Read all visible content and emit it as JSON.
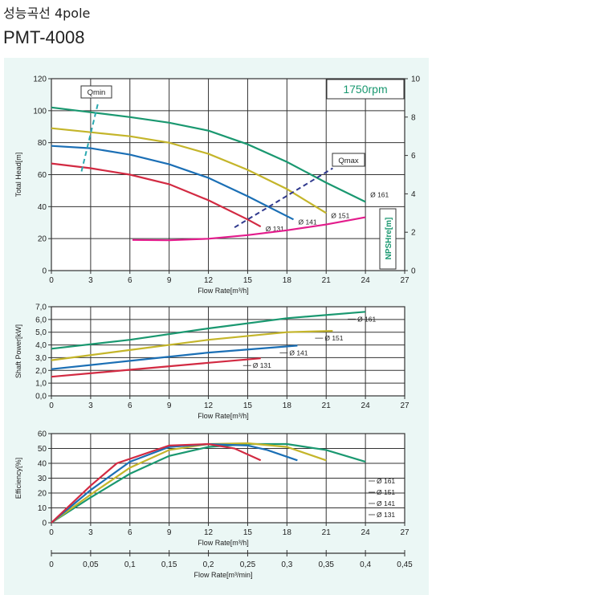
{
  "header": {
    "title": "성능곡선 4pole",
    "model": "PMT-4008"
  },
  "colors": {
    "d161": "#1a9870",
    "d151": "#c4b52a",
    "d141": "#1b6fb5",
    "d131": "#d22a42",
    "npsh": "#e31c8c",
    "qmin": "#2aa9b0",
    "qmax": "#303a8e",
    "grid": "#333333",
    "rpm": "#1a9870"
  },
  "chart_data": [
    {
      "type": "line",
      "ylabel": "Total Head[m]",
      "y2label": "NPSHre[m]",
      "xlabel": "Flow Rate[m³/h]",
      "rpm_label": "1750rpm",
      "xlim": [
        0,
        27
      ],
      "ylim": [
        0,
        120
      ],
      "y2lim": [
        0,
        10
      ],
      "xticks": [
        "0",
        "3",
        "6",
        "9",
        "12",
        "15",
        "18",
        "21",
        "24",
        "27"
      ],
      "yticks": [
        "0",
        "20",
        "40",
        "60",
        "80",
        "100",
        "120"
      ],
      "y2ticks": [
        "0",
        "2",
        "4",
        "6",
        "8",
        "10"
      ],
      "series": [
        {
          "name": "Ø 161",
          "points": [
            [
              0,
              102
            ],
            [
              3,
              99
            ],
            [
              6,
              96
            ],
            [
              9,
              92.5
            ],
            [
              12,
              87.5
            ],
            [
              15,
              79
            ],
            [
              18,
              68
            ],
            [
              21,
              55
            ],
            [
              24,
              43
            ]
          ]
        },
        {
          "name": "Ø 151",
          "points": [
            [
              0,
              89
            ],
            [
              3,
              86.5
            ],
            [
              6,
              84
            ],
            [
              9,
              80
            ],
            [
              12,
              73
            ],
            [
              15,
              63
            ],
            [
              18,
              51
            ],
            [
              21,
              36
            ]
          ]
        },
        {
          "name": "Ø 141",
          "points": [
            [
              0,
              78
            ],
            [
              3,
              76.5
            ],
            [
              6,
              72.5
            ],
            [
              9,
              66.5
            ],
            [
              12,
              58
            ],
            [
              15,
              46.5
            ],
            [
              18.5,
              32
            ]
          ]
        },
        {
          "name": "Ø 131",
          "points": [
            [
              0,
              67
            ],
            [
              3,
              64
            ],
            [
              6,
              60
            ],
            [
              9,
              54
            ],
            [
              12,
              44
            ],
            [
              15,
              32
            ],
            [
              16,
              27.5
            ]
          ]
        }
      ],
      "npsh": [
        [
          6.2,
          1.6
        ],
        [
          9,
          1.58
        ],
        [
          12,
          1.66
        ],
        [
          15,
          1.85
        ],
        [
          18,
          2.1
        ],
        [
          21,
          2.4
        ],
        [
          24,
          2.78
        ]
      ],
      "qmin": {
        "label": "Qmin",
        "line": [
          [
            2.3,
            62
          ],
          [
            3.6,
            106
          ]
        ]
      },
      "qmax": {
        "label": "Qmax",
        "line": [
          [
            14,
            27
          ],
          [
            21.5,
            64
          ]
        ]
      }
    },
    {
      "type": "line",
      "ylabel": "Shaft Power[kW]",
      "xlabel": "Flow Rate[m³/h]",
      "xlim": [
        0,
        27
      ],
      "ylim": [
        0,
        7
      ],
      "xticks": [
        "0",
        "3",
        "6",
        "9",
        "12",
        "15",
        "18",
        "21",
        "24",
        "27"
      ],
      "yticks": [
        "0,0",
        "1,0",
        "2,0",
        "3,0",
        "4,0",
        "5,0",
        "6,0",
        "7,0"
      ],
      "series": [
        {
          "name": "Ø 161",
          "points": [
            [
              0,
              3.7
            ],
            [
              6,
              4.4
            ],
            [
              12,
              5.3
            ],
            [
              18,
              6.1
            ],
            [
              24,
              6.6
            ]
          ]
        },
        {
          "name": "Ø 151",
          "points": [
            [
              0,
              2.8
            ],
            [
              6,
              3.6
            ],
            [
              12,
              4.4
            ],
            [
              18,
              5.0
            ],
            [
              21.5,
              5.1
            ]
          ]
        },
        {
          "name": "Ø 141",
          "points": [
            [
              0,
              2.1
            ],
            [
              6,
              2.75
            ],
            [
              12,
              3.4
            ],
            [
              18.8,
              3.95
            ]
          ]
        },
        {
          "name": "Ø 131",
          "points": [
            [
              0,
              1.5
            ],
            [
              6,
              2.05
            ],
            [
              12,
              2.6
            ],
            [
              16,
              2.95
            ]
          ]
        }
      ]
    },
    {
      "type": "line",
      "ylabel": "Efficiency[%]",
      "xlabel": "Flow Rate[m³/h]",
      "xlabel2": "Flow Rate[m³/min]",
      "xlim": [
        0,
        27
      ],
      "ylim": [
        0,
        60
      ],
      "xticks": [
        "0",
        "3",
        "6",
        "9",
        "12",
        "15",
        "18",
        "21",
        "24",
        "27"
      ],
      "yticks": [
        "0",
        "10",
        "20",
        "30",
        "40",
        "50",
        "60"
      ],
      "x2ticks": [
        "0",
        "0,05",
        "0,1",
        "0,15",
        "0,2",
        "0,25",
        "0,3",
        "0,35",
        "0,4",
        "0,45"
      ],
      "legend": [
        "Ø 161",
        "Ø 151",
        "Ø 141",
        "Ø 131"
      ],
      "series": [
        {
          "name": "Ø 161",
          "points": [
            [
              0,
              0
            ],
            [
              3,
              17
            ],
            [
              6,
              33
            ],
            [
              9,
              45
            ],
            [
              12,
              51
            ],
            [
              15,
              53
            ],
            [
              18,
              53
            ],
            [
              21,
              49
            ],
            [
              24,
              41
            ]
          ]
        },
        {
          "name": "Ø 151",
          "points": [
            [
              0,
              0
            ],
            [
              3,
              19
            ],
            [
              6,
              37
            ],
            [
              9,
              49
            ],
            [
              12,
              53
            ],
            [
              15,
              53.5
            ],
            [
              18,
              51
            ],
            [
              21,
              42
            ]
          ]
        },
        {
          "name": "Ø 141",
          "points": [
            [
              0,
              0
            ],
            [
              3,
              22
            ],
            [
              6,
              41
            ],
            [
              9,
              51
            ],
            [
              12,
              53
            ],
            [
              15,
              52
            ],
            [
              16.5,
              49
            ],
            [
              18.8,
              42
            ]
          ]
        },
        {
          "name": "Ø 131",
          "points": [
            [
              0,
              0
            ],
            [
              3,
              25
            ],
            [
              5,
              40
            ],
            [
              9,
              52
            ],
            [
              12,
              53
            ],
            [
              14,
              50
            ],
            [
              16,
              42
            ]
          ]
        }
      ]
    }
  ]
}
